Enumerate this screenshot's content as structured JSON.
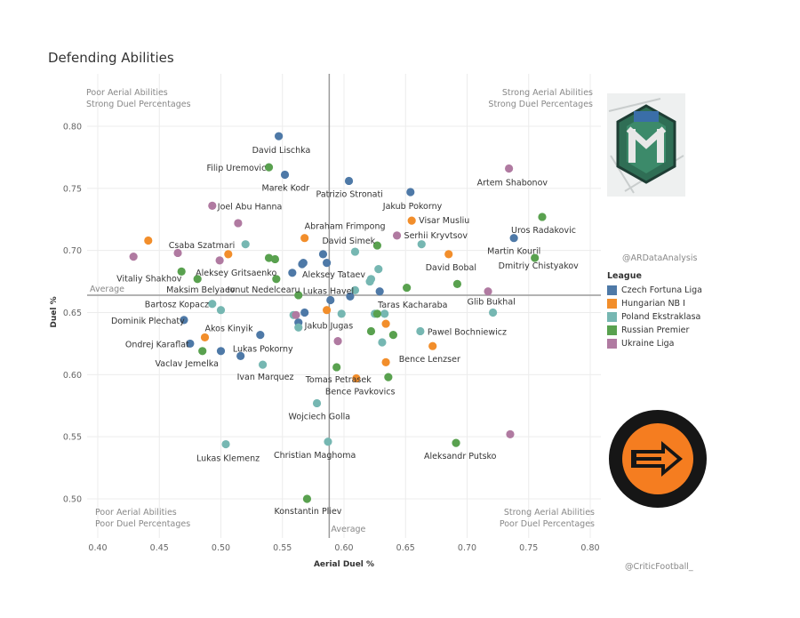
{
  "title": "Defending Abilities",
  "handles": {
    "top": "@ARDataAnalysis",
    "bottom": "@CriticFootball_"
  },
  "chart_data": {
    "type": "scatter",
    "title": "Defending Abilities",
    "xlabel": "Aerial Duel %",
    "ylabel": "Duel %",
    "xlim": [
      0.4,
      0.8
    ],
    "ylim": [
      0.5,
      0.8
    ],
    "x_ticks": [
      "0.40",
      "0.45",
      "0.50",
      "0.55",
      "0.60",
      "0.65",
      "0.70",
      "0.75",
      "0.80"
    ],
    "y_ticks": [
      "0.50",
      "0.55",
      "0.60",
      "0.65",
      "0.70",
      "0.75",
      "0.80"
    ],
    "grid": true,
    "reference_lines": {
      "x_average": 0.588,
      "y_average": 0.664,
      "x_label": "Average",
      "y_label": "Average"
    },
    "quadrant_labels": {
      "top_left": [
        "Poor Aerial Abilities",
        "Strong Duel Percentages"
      ],
      "top_right": [
        "Strong Aerial Abilities",
        "Strong Duel Percentages"
      ],
      "bottom_left": [
        "Poor Aerial Abilities",
        "Poor Duel Percentages"
      ],
      "bottom_right": [
        "Strong Aerial Abilities",
        "Poor Duel Percentages"
      ]
    },
    "legend": {
      "title": "League",
      "position": "right",
      "entries": [
        {
          "name": "Czech Fortuna Liga",
          "color": "#4e79a7"
        },
        {
          "name": "Hungarian NB I",
          "color": "#f28e2b"
        },
        {
          "name": "Poland Ekstraklasa",
          "color": "#76b7b2"
        },
        {
          "name": "Russian Premier",
          "color": "#59a14f"
        },
        {
          "name": "Ukraine Liga",
          "color": "#b07aa1"
        }
      ]
    },
    "series": [
      {
        "name": "Czech Fortuna Liga",
        "color": "#4e79a7",
        "points": [
          {
            "x": 0.547,
            "y": 0.792,
            "label": "David Lischka"
          },
          {
            "x": 0.552,
            "y": 0.761,
            "label": "Marek Kodr"
          },
          {
            "x": 0.604,
            "y": 0.756,
            "label": "Patrizio Stronati"
          },
          {
            "x": 0.654,
            "y": 0.747,
            "label": "Jakub Pokorny"
          },
          {
            "x": 0.738,
            "y": 0.71,
            "label": "Martin Kouril"
          },
          {
            "x": 0.629,
            "y": 0.667,
            "label": "Taras Kacharaba"
          },
          {
            "x": 0.47,
            "y": 0.644,
            "label": "Dominik Plechaty"
          },
          {
            "x": 0.475,
            "y": 0.625,
            "label": "Ondrej Karaflat"
          },
          {
            "x": 0.5,
            "y": 0.619,
            "label": "Vaclav Jemelka"
          },
          {
            "x": 0.532,
            "y": 0.632,
            "label": "Lukas Pokorny"
          },
          {
            "x": 0.568,
            "y": 0.65,
            "label": "Jakub Jugas"
          },
          {
            "x": 0.589,
            "y": 0.66,
            "label": "Lukas Havel"
          },
          {
            "x": 0.583,
            "y": 0.697,
            "label": ""
          },
          {
            "x": 0.586,
            "y": 0.69,
            "label": ""
          },
          {
            "x": 0.566,
            "y": 0.689,
            "label": ""
          },
          {
            "x": 0.567,
            "y": 0.69,
            "label": ""
          },
          {
            "x": 0.558,
            "y": 0.682,
            "label": ""
          },
          {
            "x": 0.516,
            "y": 0.615,
            "label": ""
          },
          {
            "x": 0.563,
            "y": 0.642,
            "label": ""
          },
          {
            "x": 0.605,
            "y": 0.663,
            "label": ""
          }
        ]
      },
      {
        "name": "Hungarian NB I",
        "color": "#f28e2b",
        "points": [
          {
            "x": 0.441,
            "y": 0.708,
            "label": ""
          },
          {
            "x": 0.506,
            "y": 0.697,
            "label": "Csaba Szatmari"
          },
          {
            "x": 0.568,
            "y": 0.71,
            "label": "Abraham Frimpong"
          },
          {
            "x": 0.655,
            "y": 0.724,
            "label": "Visar Musliu"
          },
          {
            "x": 0.685,
            "y": 0.697,
            "label": "David Bobal"
          },
          {
            "x": 0.487,
            "y": 0.63,
            "label": "Akos Kinyik"
          },
          {
            "x": 0.586,
            "y": 0.652,
            "label": ""
          },
          {
            "x": 0.634,
            "y": 0.641,
            "label": ""
          },
          {
            "x": 0.672,
            "y": 0.623,
            "label": "Bence Lenzser"
          },
          {
            "x": 0.634,
            "y": 0.61,
            "label": ""
          },
          {
            "x": 0.61,
            "y": 0.597,
            "label": "Bence Pavkovics"
          }
        ]
      },
      {
        "name": "Poland Ekstraklasa",
        "color": "#76b7b2",
        "points": [
          {
            "x": 0.52,
            "y": 0.705,
            "label": ""
          },
          {
            "x": 0.609,
            "y": 0.699,
            "label": "David Simek"
          },
          {
            "x": 0.663,
            "y": 0.705,
            "label": ""
          },
          {
            "x": 0.628,
            "y": 0.685,
            "label": ""
          },
          {
            "x": 0.622,
            "y": 0.677,
            "label": ""
          },
          {
            "x": 0.621,
            "y": 0.675,
            "label": ""
          },
          {
            "x": 0.609,
            "y": 0.668,
            "label": ""
          },
          {
            "x": 0.493,
            "y": 0.657,
            "label": "Bartosz Kopacz"
          },
          {
            "x": 0.5,
            "y": 0.652,
            "label": ""
          },
          {
            "x": 0.559,
            "y": 0.648,
            "label": ""
          },
          {
            "x": 0.563,
            "y": 0.638,
            "label": ""
          },
          {
            "x": 0.598,
            "y": 0.649,
            "label": ""
          },
          {
            "x": 0.625,
            "y": 0.649,
            "label": ""
          },
          {
            "x": 0.633,
            "y": 0.649,
            "label": ""
          },
          {
            "x": 0.662,
            "y": 0.635,
            "label": "Pawel Bochniewicz"
          },
          {
            "x": 0.631,
            "y": 0.626,
            "label": ""
          },
          {
            "x": 0.721,
            "y": 0.65,
            "label": "Glib Bukhal"
          },
          {
            "x": 0.534,
            "y": 0.608,
            "label": "Ivan Marquez"
          },
          {
            "x": 0.578,
            "y": 0.577,
            "label": "Wojciech Golla"
          },
          {
            "x": 0.504,
            "y": 0.544,
            "label": "Lukas Klemenz"
          },
          {
            "x": 0.587,
            "y": 0.546,
            "label": "Christian Maghoma"
          }
        ]
      },
      {
        "name": "Russian Premier",
        "color": "#59a14f",
        "points": [
          {
            "x": 0.539,
            "y": 0.767,
            "label": "Filip Uremovic"
          },
          {
            "x": 0.539,
            "y": 0.694,
            "label": ""
          },
          {
            "x": 0.544,
            "y": 0.693,
            "label": ""
          },
          {
            "x": 0.468,
            "y": 0.683,
            "label": "Vitaliy Shakhov"
          },
          {
            "x": 0.481,
            "y": 0.677,
            "label": "Maksim Belyaev"
          },
          {
            "x": 0.545,
            "y": 0.677,
            "label": "Ionut Nedelcearu"
          },
          {
            "x": 0.563,
            "y": 0.664,
            "label": ""
          },
          {
            "x": 0.627,
            "y": 0.704,
            "label": ""
          },
          {
            "x": 0.651,
            "y": 0.67,
            "label": ""
          },
          {
            "x": 0.692,
            "y": 0.673,
            "label": ""
          },
          {
            "x": 0.761,
            "y": 0.727,
            "label": "Uros Radakovic"
          },
          {
            "x": 0.755,
            "y": 0.694,
            "label": "Dmitriy Chistyakov"
          },
          {
            "x": 0.627,
            "y": 0.649,
            "label": ""
          },
          {
            "x": 0.622,
            "y": 0.635,
            "label": ""
          },
          {
            "x": 0.64,
            "y": 0.632,
            "label": ""
          },
          {
            "x": 0.485,
            "y": 0.619,
            "label": ""
          },
          {
            "x": 0.594,
            "y": 0.606,
            "label": "Tomas Petrasek"
          },
          {
            "x": 0.636,
            "y": 0.598,
            "label": ""
          },
          {
            "x": 0.691,
            "y": 0.545,
            "label": "Aleksandr Putsko"
          },
          {
            "x": 0.57,
            "y": 0.5,
            "label": "Konstantin Pliev"
          }
        ]
      },
      {
        "name": "Ukraine Liga",
        "color": "#b07aa1",
        "points": [
          {
            "x": 0.734,
            "y": 0.766,
            "label": "Artem Shabonov"
          },
          {
            "x": 0.493,
            "y": 0.736,
            "label": "Joel Abu Hanna"
          },
          {
            "x": 0.514,
            "y": 0.722,
            "label": ""
          },
          {
            "x": 0.643,
            "y": 0.712,
            "label": "Serhii Kryvtsov"
          },
          {
            "x": 0.465,
            "y": 0.698,
            "label": ""
          },
          {
            "x": 0.429,
            "y": 0.695,
            "label": ""
          },
          {
            "x": 0.499,
            "y": 0.692,
            "label": "Aleksey Gritsaenko"
          },
          {
            "x": 0.717,
            "y": 0.667,
            "label": ""
          },
          {
            "x": 0.561,
            "y": 0.648,
            "label": ""
          },
          {
            "x": 0.595,
            "y": 0.627,
            "label": ""
          },
          {
            "x": 0.735,
            "y": 0.552,
            "label": ""
          }
        ]
      }
    ],
    "extra_labels": [
      "Aleksey Tataev"
    ]
  }
}
